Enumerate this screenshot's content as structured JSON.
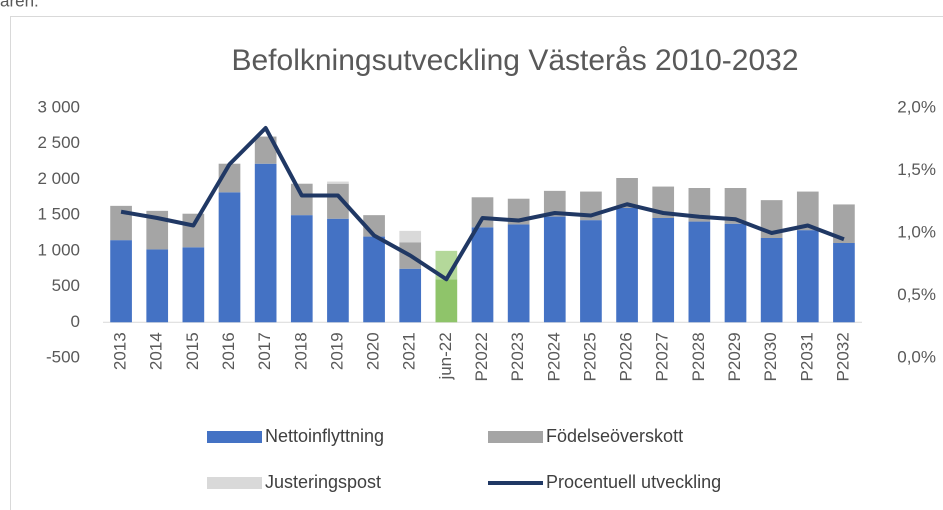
{
  "leading_text": "åren.",
  "chart_data": {
    "type": "bar",
    "title": "Befolkningsutveckling Västerås 2010-2032",
    "categories": [
      "2013",
      "2014",
      "2015",
      "2016",
      "2017",
      "2018",
      "2019",
      "2020",
      "2021",
      "jun-22",
      "P2022",
      "P2023",
      "P2024",
      "P2025",
      "P2026",
      "P2027",
      "P2028",
      "P2029",
      "P2030",
      "P2031",
      "P2032"
    ],
    "series": [
      {
        "name": "Nettoinflyttning",
        "color": "#4472c4",
        "highlight_color": "#8fc46a",
        "values": [
          1150,
          1020,
          1050,
          1820,
          2220,
          1500,
          1450,
          1200,
          750,
          600,
          1330,
          1370,
          1480,
          1430,
          1600,
          1460,
          1410,
          1380,
          1180,
          1290,
          1110
        ]
      },
      {
        "name": "Födelseöverskott",
        "color": "#a5a5a5",
        "highlight_color": "#b4d89a",
        "values": [
          480,
          540,
          470,
          400,
          380,
          440,
          490,
          300,
          370,
          400,
          420,
          360,
          360,
          400,
          420,
          440,
          470,
          500,
          530,
          540,
          540
        ]
      },
      {
        "name": "Justeringspost",
        "color": "#d9d9d9",
        "highlight_color": "#d9d9d9",
        "values": [
          0,
          0,
          0,
          0,
          0,
          0,
          30,
          0,
          160,
          0,
          0,
          0,
          0,
          0,
          0,
          0,
          0,
          0,
          0,
          0,
          0
        ]
      },
      {
        "name": "Procentuell utveckling",
        "type": "line",
        "axis": "y2",
        "color": "#203864",
        "values": [
          1.17,
          1.12,
          1.06,
          1.55,
          1.84,
          1.3,
          1.3,
          0.98,
          0.82,
          0.63,
          1.12,
          1.1,
          1.16,
          1.14,
          1.23,
          1.16,
          1.13,
          1.11,
          1.0,
          1.06,
          0.95
        ]
      }
    ],
    "highlight_category": "jun-22",
    "ylim": [
      -500,
      3000
    ],
    "yticks": [
      -500,
      0,
      500,
      {
        "value": 1000,
        "label": "1 000"
      },
      {
        "value": 1500,
        "label": "1 500"
      },
      {
        "value": 2000,
        "label": "2 000"
      },
      {
        "value": 2500,
        "label": "2 500"
      },
      {
        "value": 3000,
        "label": "3 000"
      }
    ],
    "y2lim": [
      0,
      2
    ],
    "y2ticks": [
      {
        "value": 0,
        "label": "0,0%"
      },
      {
        "value": 0.5,
        "label": "0,5%"
      },
      {
        "value": 1,
        "label": "1,0%"
      },
      {
        "value": 1.5,
        "label": "1,5%"
      },
      {
        "value": 2,
        "label": "2,0%"
      }
    ],
    "grid": false,
    "legend": "bottom"
  }
}
